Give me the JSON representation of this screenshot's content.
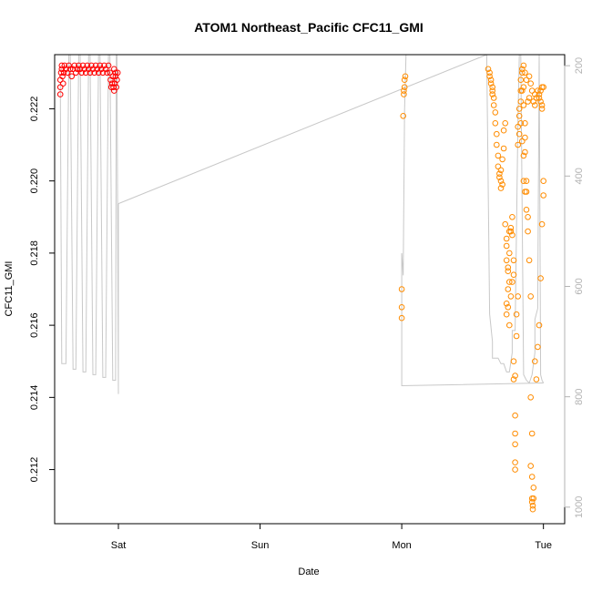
{
  "chart_data": {
    "type": "scatter",
    "title": "ATOM1 Northeast_Pacific CFC11_GMI",
    "xlabel": "Date",
    "ylabel": "CFC11_GMI",
    "x_unit": "days since Saturday 00:00",
    "xlim": [
      -0.45,
      3.15
    ],
    "ylim": [
      0.2105,
      0.2235
    ],
    "x_ticks": [
      {
        "value": 0,
        "label": "Sat"
      },
      {
        "value": 1,
        "label": "Sun"
      },
      {
        "value": 2,
        "label": "Mon"
      },
      {
        "value": 3,
        "label": "Tue"
      }
    ],
    "y_ticks": [
      0.212,
      0.214,
      0.216,
      0.218,
      0.22,
      0.222
    ],
    "y_tick_labels": [
      "0.212",
      "0.214",
      "0.216",
      "0.218",
      "0.220",
      "0.222"
    ],
    "right_axis": {
      "label": "",
      "color": "#b3b3b3",
      "lim": [
        180,
        1030
      ],
      "reversed": true,
      "ticks": [
        200,
        400,
        600,
        800,
        1000
      ],
      "tick_labels": [
        "200",
        "400",
        "600",
        "800",
        "1000"
      ]
    },
    "colors": {
      "series_red": "#ff0000",
      "series_orange": "#ff8c00",
      "pressure_line": "#c8c8c8",
      "axis": "#000000"
    },
    "series": [
      {
        "marker": "open-circle",
        "color": "#ff0000",
        "axis": "left",
        "points": [
          [
            -0.41,
            0.2224
          ],
          [
            -0.41,
            0.2226
          ],
          [
            -0.41,
            0.2228
          ],
          [
            -0.405,
            0.223
          ],
          [
            -0.4,
            0.2231
          ],
          [
            -0.4,
            0.2232
          ],
          [
            -0.395,
            0.2229
          ],
          [
            -0.39,
            0.2227
          ],
          [
            -0.385,
            0.223
          ],
          [
            -0.38,
            0.2232
          ],
          [
            -0.37,
            0.2231
          ],
          [
            -0.36,
            0.223
          ],
          [
            -0.35,
            0.2232
          ],
          [
            -0.34,
            0.2231
          ],
          [
            -0.33,
            0.2229
          ],
          [
            -0.32,
            0.2231
          ],
          [
            -0.31,
            0.2232
          ],
          [
            -0.3,
            0.223
          ],
          [
            -0.29,
            0.2231
          ],
          [
            -0.28,
            0.2232
          ],
          [
            -0.27,
            0.2231
          ],
          [
            -0.26,
            0.223
          ],
          [
            -0.25,
            0.2232
          ],
          [
            -0.24,
            0.2231
          ],
          [
            -0.23,
            0.223
          ],
          [
            -0.22,
            0.2232
          ],
          [
            -0.21,
            0.2231
          ],
          [
            -0.2,
            0.223
          ],
          [
            -0.19,
            0.2232
          ],
          [
            -0.18,
            0.2231
          ],
          [
            -0.17,
            0.223
          ],
          [
            -0.16,
            0.2232
          ],
          [
            -0.15,
            0.2231
          ],
          [
            -0.14,
            0.223
          ],
          [
            -0.13,
            0.2232
          ],
          [
            -0.12,
            0.2231
          ],
          [
            -0.11,
            0.223
          ],
          [
            -0.1,
            0.2232
          ],
          [
            -0.09,
            0.2231
          ],
          [
            -0.08,
            0.223
          ],
          [
            -0.07,
            0.2232
          ],
          [
            -0.06,
            0.223
          ],
          [
            -0.055,
            0.2228
          ],
          [
            -0.05,
            0.2226
          ],
          [
            -0.045,
            0.2227
          ],
          [
            -0.04,
            0.2229
          ],
          [
            -0.035,
            0.2226
          ],
          [
            -0.03,
            0.2225
          ],
          [
            -0.025,
            0.2227
          ],
          [
            -0.02,
            0.2229
          ],
          [
            -0.015,
            0.2226
          ],
          [
            -0.01,
            0.2228
          ],
          [
            -0.005,
            0.223
          ],
          [
            -0.03,
            0.2231
          ],
          [
            -0.02,
            0.223
          ]
        ]
      },
      {
        "marker": "open-circle",
        "color": "#ff8c00",
        "axis": "left",
        "points": [
          [
            2.0,
            0.2162
          ],
          [
            2.0,
            0.2165
          ],
          [
            2.0,
            0.217
          ],
          [
            2.01,
            0.2218
          ],
          [
            2.015,
            0.2224
          ],
          [
            2.015,
            0.2225
          ],
          [
            2.02,
            0.2226
          ],
          [
            2.02,
            0.2228
          ],
          [
            2.025,
            0.2229
          ],
          [
            2.61,
            0.2231
          ],
          [
            2.62,
            0.223
          ],
          [
            2.62,
            0.2229
          ],
          [
            2.63,
            0.2228
          ],
          [
            2.63,
            0.2227
          ],
          [
            2.64,
            0.2226
          ],
          [
            2.64,
            0.2225
          ],
          [
            2.64,
            0.2224
          ],
          [
            2.65,
            0.2223
          ],
          [
            2.65,
            0.2221
          ],
          [
            2.66,
            0.2219
          ],
          [
            2.66,
            0.2216
          ],
          [
            2.67,
            0.2213
          ],
          [
            2.67,
            0.221
          ],
          [
            2.68,
            0.2207
          ],
          [
            2.68,
            0.2204
          ],
          [
            2.69,
            0.2202
          ],
          [
            2.69,
            0.2201
          ],
          [
            2.7,
            0.2203
          ],
          [
            2.7,
            0.22
          ],
          [
            2.7,
            0.2198
          ],
          [
            2.71,
            0.2199
          ],
          [
            2.71,
            0.2206
          ],
          [
            2.72,
            0.2209
          ],
          [
            2.72,
            0.2214
          ],
          [
            2.73,
            0.2216
          ],
          [
            2.73,
            0.2188
          ],
          [
            2.74,
            0.2184
          ],
          [
            2.74,
            0.2182
          ],
          [
            2.74,
            0.2178
          ],
          [
            2.75,
            0.2176
          ],
          [
            2.75,
            0.2175
          ],
          [
            2.76,
            0.218
          ],
          [
            2.76,
            0.2186
          ],
          [
            2.77,
            0.2187
          ],
          [
            2.77,
            0.2186
          ],
          [
            2.78,
            0.219
          ],
          [
            2.78,
            0.2185
          ],
          [
            2.79,
            0.2178
          ],
          [
            2.76,
            0.2172
          ],
          [
            2.75,
            0.217
          ],
          [
            2.74,
            0.2166
          ],
          [
            2.75,
            0.2165
          ],
          [
            2.74,
            0.2163
          ],
          [
            2.76,
            0.216
          ],
          [
            2.77,
            0.2168
          ],
          [
            2.78,
            0.2172
          ],
          [
            2.79,
            0.2174
          ],
          [
            2.79,
            0.2145
          ],
          [
            2.79,
            0.215
          ],
          [
            2.8,
            0.2135
          ],
          [
            2.8,
            0.213
          ],
          [
            2.8,
            0.2122
          ],
          [
            2.8,
            0.2146
          ],
          [
            2.81,
            0.2157
          ],
          [
            2.81,
            0.2163
          ],
          [
            2.82,
            0.2168
          ],
          [
            2.82,
            0.221
          ],
          [
            2.82,
            0.2215
          ],
          [
            2.83,
            0.2213
          ],
          [
            2.83,
            0.222
          ],
          [
            2.84,
            0.2225
          ],
          [
            2.84,
            0.2228
          ],
          [
            2.85,
            0.223
          ],
          [
            2.85,
            0.2231
          ],
          [
            2.86,
            0.2226
          ],
          [
            2.86,
            0.2221
          ],
          [
            2.87,
            0.2216
          ],
          [
            2.87,
            0.2212
          ],
          [
            2.87,
            0.2208
          ],
          [
            2.88,
            0.22
          ],
          [
            2.88,
            0.2197
          ],
          [
            2.89,
            0.219
          ],
          [
            2.89,
            0.2186
          ],
          [
            2.9,
            0.2178
          ],
          [
            2.91,
            0.2168
          ],
          [
            2.91,
            0.214
          ],
          [
            2.92,
            0.213
          ],
          [
            2.92,
            0.2118
          ],
          [
            2.92,
            0.2112
          ],
          [
            2.92,
            0.2111
          ],
          [
            2.925,
            0.211
          ],
          [
            2.925,
            0.2109
          ],
          [
            2.93,
            0.2112
          ],
          [
            2.93,
            0.2115
          ],
          [
            2.94,
            0.215
          ],
          [
            2.95,
            0.2145
          ],
          [
            2.96,
            0.2154
          ],
          [
            2.97,
            0.216
          ],
          [
            2.98,
            0.2173
          ],
          [
            2.99,
            0.2188
          ],
          [
            3.0,
            0.2196
          ],
          [
            3.0,
            0.22
          ],
          [
            2.99,
            0.222
          ],
          [
            2.99,
            0.2221
          ],
          [
            2.98,
            0.2222
          ],
          [
            2.97,
            0.2223
          ],
          [
            2.97,
            0.2224
          ],
          [
            2.98,
            0.2225
          ],
          [
            2.99,
            0.2226
          ],
          [
            3.0,
            0.2226
          ],
          [
            2.96,
            0.2225
          ],
          [
            2.95,
            0.2223
          ],
          [
            2.94,
            0.2224
          ],
          [
            2.94,
            0.2221
          ],
          [
            2.93,
            0.2222
          ],
          [
            2.92,
            0.2225
          ],
          [
            2.91,
            0.2227
          ],
          [
            2.9,
            0.2223
          ],
          [
            2.89,
            0.2222
          ],
          [
            2.9,
            0.2229
          ],
          [
            2.86,
            0.2232
          ],
          [
            2.87,
            0.223
          ],
          [
            2.88,
            0.2228
          ],
          [
            2.85,
            0.2225
          ],
          [
            2.84,
            0.2222
          ],
          [
            2.83,
            0.2218
          ],
          [
            2.84,
            0.2216
          ],
          [
            2.85,
            0.2211
          ],
          [
            2.86,
            0.2207
          ],
          [
            2.86,
            0.22
          ],
          [
            2.87,
            0.2197
          ],
          [
            2.88,
            0.2192
          ],
          [
            2.8,
            0.212
          ],
          [
            2.8,
            0.2127
          ],
          [
            2.91,
            0.2121
          ]
        ]
      }
    ],
    "pressure_line_segments": [
      [
        [
          -0.41,
          230
        ],
        [
          -0.4,
          740
        ],
        [
          -0.37,
          740
        ],
        [
          -0.35,
          180
        ],
        [
          -0.34,
          180
        ],
        [
          -0.32,
          750
        ],
        [
          -0.3,
          750
        ],
        [
          -0.28,
          180
        ],
        [
          -0.27,
          180
        ],
        [
          -0.25,
          755
        ],
        [
          -0.23,
          755
        ],
        [
          -0.21,
          180
        ],
        [
          -0.2,
          180
        ],
        [
          -0.18,
          760
        ],
        [
          -0.16,
          760
        ],
        [
          -0.14,
          180
        ],
        [
          -0.13,
          180
        ],
        [
          -0.11,
          765
        ],
        [
          -0.09,
          765
        ],
        [
          -0.07,
          180
        ],
        [
          -0.06,
          180
        ],
        [
          -0.04,
          770
        ],
        [
          -0.02,
          770
        ],
        [
          -0.015,
          180
        ],
        [
          -0.01,
          180
        ],
        [
          0.0,
          795
        ],
        [
          0.0,
          450
        ]
      ],
      [
        [
          0.0,
          450
        ],
        [
          2.6,
          180
        ],
        [
          2.6,
          180
        ]
      ],
      [
        [
          2.0,
          540
        ],
        [
          2.01,
          580
        ],
        [
          2.02,
          280
        ],
        [
          2.03,
          180
        ]
      ],
      [
        [
          2.0,
          540
        ],
        [
          2.0,
          780
        ],
        [
          3.0,
          775
        ]
      ],
      [
        [
          2.6,
          180
        ],
        [
          2.62,
          650
        ],
        [
          2.64,
          700
        ],
        [
          2.64,
          730
        ],
        [
          2.66,
          730
        ],
        [
          2.68,
          730
        ],
        [
          2.7,
          740
        ],
        [
          2.72,
          740
        ],
        [
          2.74,
          755
        ],
        [
          2.76,
          755
        ],
        [
          2.78,
          720
        ],
        [
          2.78,
          680
        ],
        [
          2.8,
          680
        ],
        [
          2.82,
          300
        ],
        [
          2.83,
          180
        ],
        [
          2.84,
          180
        ],
        [
          2.86,
          760
        ],
        [
          2.88,
          770
        ],
        [
          2.9,
          775
        ],
        [
          2.92,
          760
        ],
        [
          2.94,
          720
        ],
        [
          2.94,
          660
        ],
        [
          2.96,
          640
        ],
        [
          2.97,
          180
        ],
        [
          2.98,
          760
        ],
        [
          2.99,
          770
        ],
        [
          3.0,
          775
        ]
      ]
    ]
  }
}
